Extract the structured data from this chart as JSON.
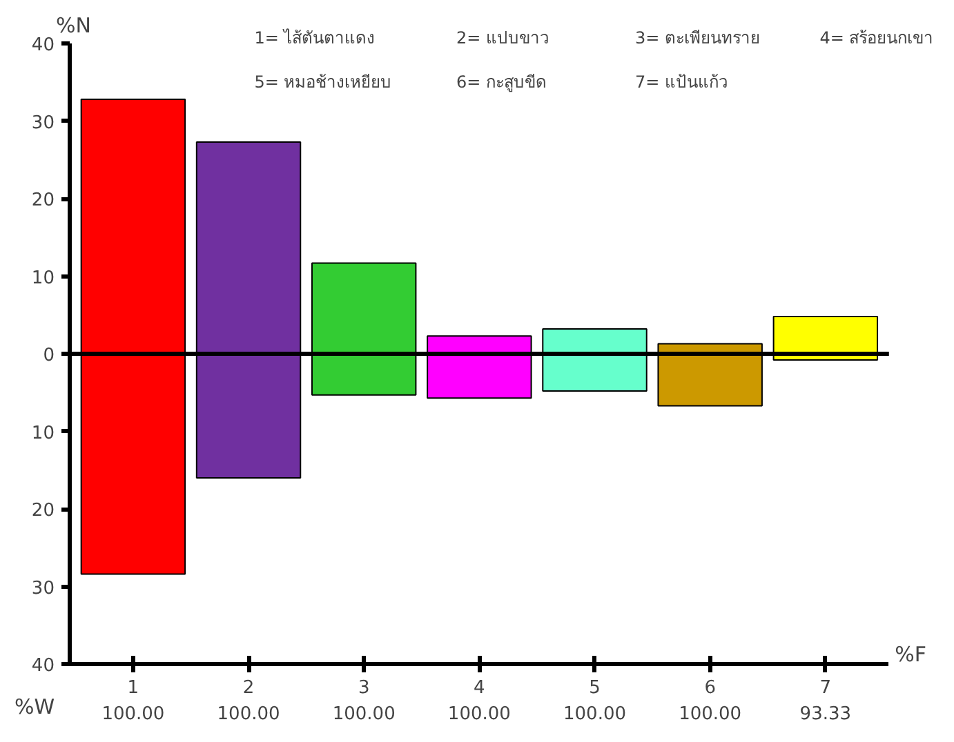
{
  "chart_data": {
    "type": "bar",
    "ylabel": "%N",
    "xlabel": "%F",
    "categories": [
      "1",
      "2",
      "3",
      "4",
      "5",
      "6",
      "7"
    ],
    "base": [
      -28.4,
      -16,
      -5.3,
      -5.7,
      -4.8,
      -6.7,
      -0.8
    ],
    "values": [
      61.2,
      43.3,
      17.0,
      8.0,
      8.0,
      8.0,
      5.6
    ],
    "colors": [
      "#ff0000",
      "#7030a0",
      "#33cc33",
      "#ff00ff",
      "#66ffcc",
      "#cc9900",
      "#ffff00"
    ],
    "ylim": [
      -40,
      40
    ],
    "yticks": [
      {
        "value": -40,
        "label": "40"
      },
      {
        "value": -30,
        "label": "30"
      },
      {
        "value": -20,
        "label": "20"
      },
      {
        "value": -10,
        "label": "10"
      },
      0,
      10,
      20,
      30,
      40
    ],
    "ref_lines": [
      {
        "axis": "y",
        "value": 0,
        "color": "#000000"
      }
    ],
    "grid": false,
    "annotations": [
      "1= ไส้ตันตาแดง",
      "2= แปบขาว",
      "3= ตะเพียนทราย",
      "4= สร้อยนกเขา",
      "5= หมอช้างเหยียบ",
      "6= กะสูบขีด",
      "7= แป้นแก้ว",
      "%W",
      "100.00",
      "100.00",
      "100.00",
      "100.00",
      "100.00",
      "100.00",
      "93.33"
    ]
  }
}
